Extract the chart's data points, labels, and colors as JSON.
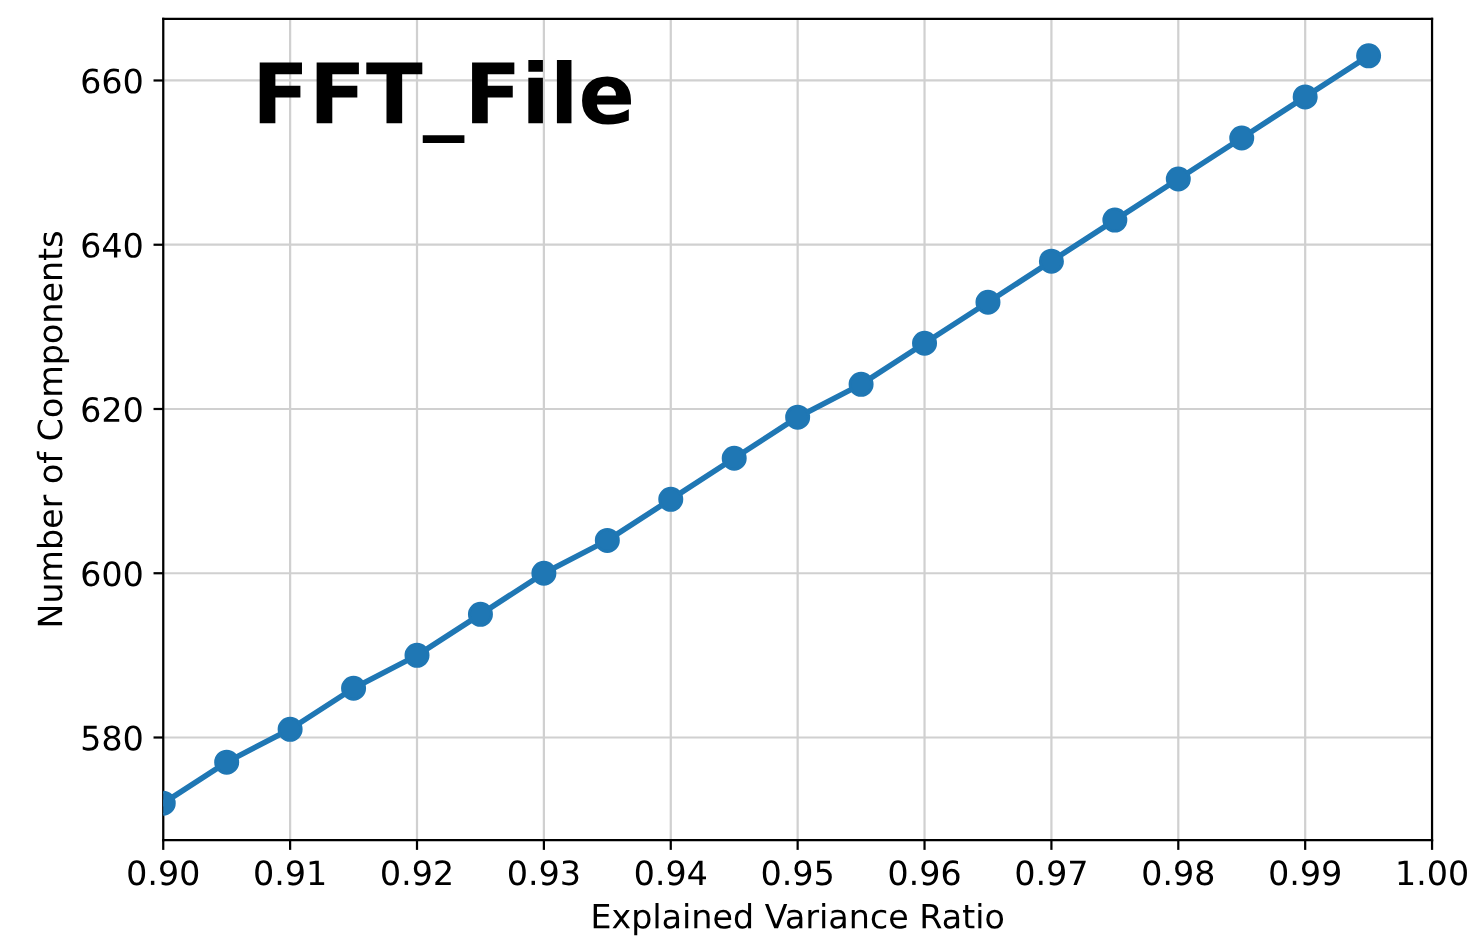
{
  "chart_data": {
    "type": "line",
    "title": "FFT_File",
    "xlabel": "Explained Variance Ratio",
    "ylabel": "Number of Components",
    "x": [
      0.9,
      0.905,
      0.91,
      0.915,
      0.92,
      0.925,
      0.93,
      0.935,
      0.94,
      0.945,
      0.95,
      0.955,
      0.96,
      0.965,
      0.97,
      0.975,
      0.98,
      0.985,
      0.99,
      0.995
    ],
    "series": [
      {
        "color": "#1f77b4",
        "values": [
          572,
          577,
          581,
          586,
          590,
          595,
          600,
          604,
          609,
          614,
          619,
          623,
          628,
          633,
          638,
          643,
          648,
          653,
          658,
          663
        ]
      }
    ],
    "xlim": [
      0.9,
      1.0
    ],
    "ylim": [
      567.5,
      667.5
    ],
    "xticks": [
      {
        "value": 0.9,
        "label": "0.90"
      },
      {
        "value": 0.91,
        "label": "0.91"
      },
      {
        "value": 0.92,
        "label": "0.92"
      },
      {
        "value": 0.93,
        "label": "0.93"
      },
      {
        "value": 0.94,
        "label": "0.94"
      },
      {
        "value": 0.95,
        "label": "0.95"
      },
      {
        "value": 0.96,
        "label": "0.96"
      },
      {
        "value": 0.97,
        "label": "0.97"
      },
      {
        "value": 0.98,
        "label": "0.98"
      },
      {
        "value": 0.99,
        "label": "0.99"
      },
      {
        "value": 1.0,
        "label": "1.00"
      }
    ],
    "yticks": [
      580,
      600,
      620,
      640,
      660
    ],
    "grid": true,
    "marker": "circle",
    "line_style": "solid"
  }
}
